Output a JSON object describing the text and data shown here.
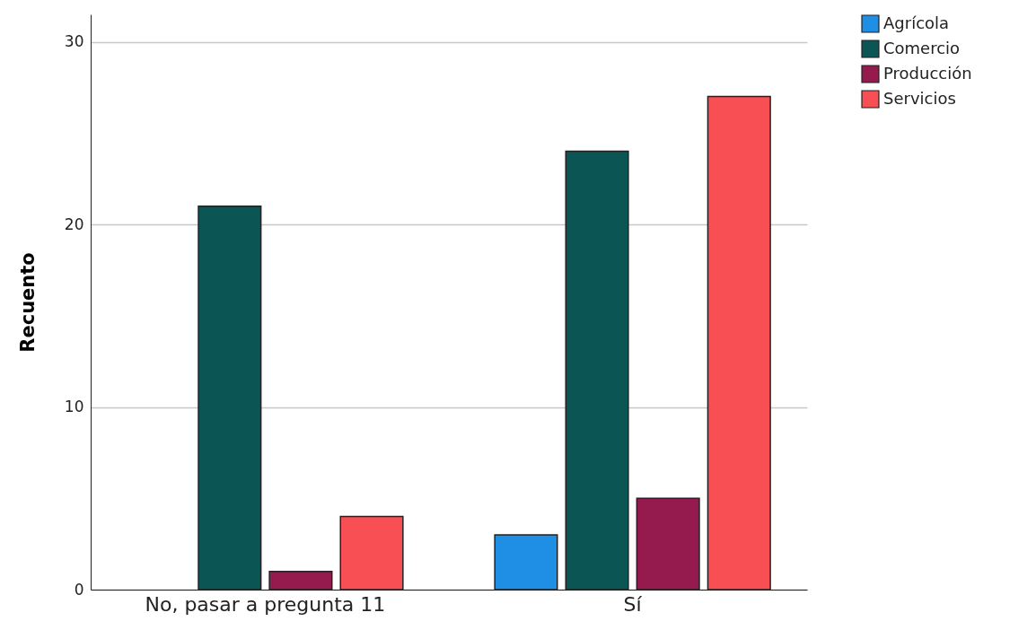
{
  "chart_data": {
    "type": "bar",
    "ylabel": "Recuento",
    "categories": [
      "No, pasar a pregunta 11",
      "Sí"
    ],
    "series": [
      {
        "name": "Agrícola",
        "color": "#1f8fe6",
        "values": [
          null,
          3
        ]
      },
      {
        "name": "Comercio",
        "color": "#0b5554",
        "values": [
          21,
          24
        ]
      },
      {
        "name": "Producción",
        "color": "#951a4d",
        "values": [
          1,
          5
        ]
      },
      {
        "name": "Servicios",
        "color": "#f74f53",
        "values": [
          4,
          27
        ]
      }
    ],
    "ylim": [
      0,
      31.5
    ],
    "yticks": [
      0,
      10,
      20,
      30
    ],
    "grid": "y",
    "legend": "right"
  }
}
